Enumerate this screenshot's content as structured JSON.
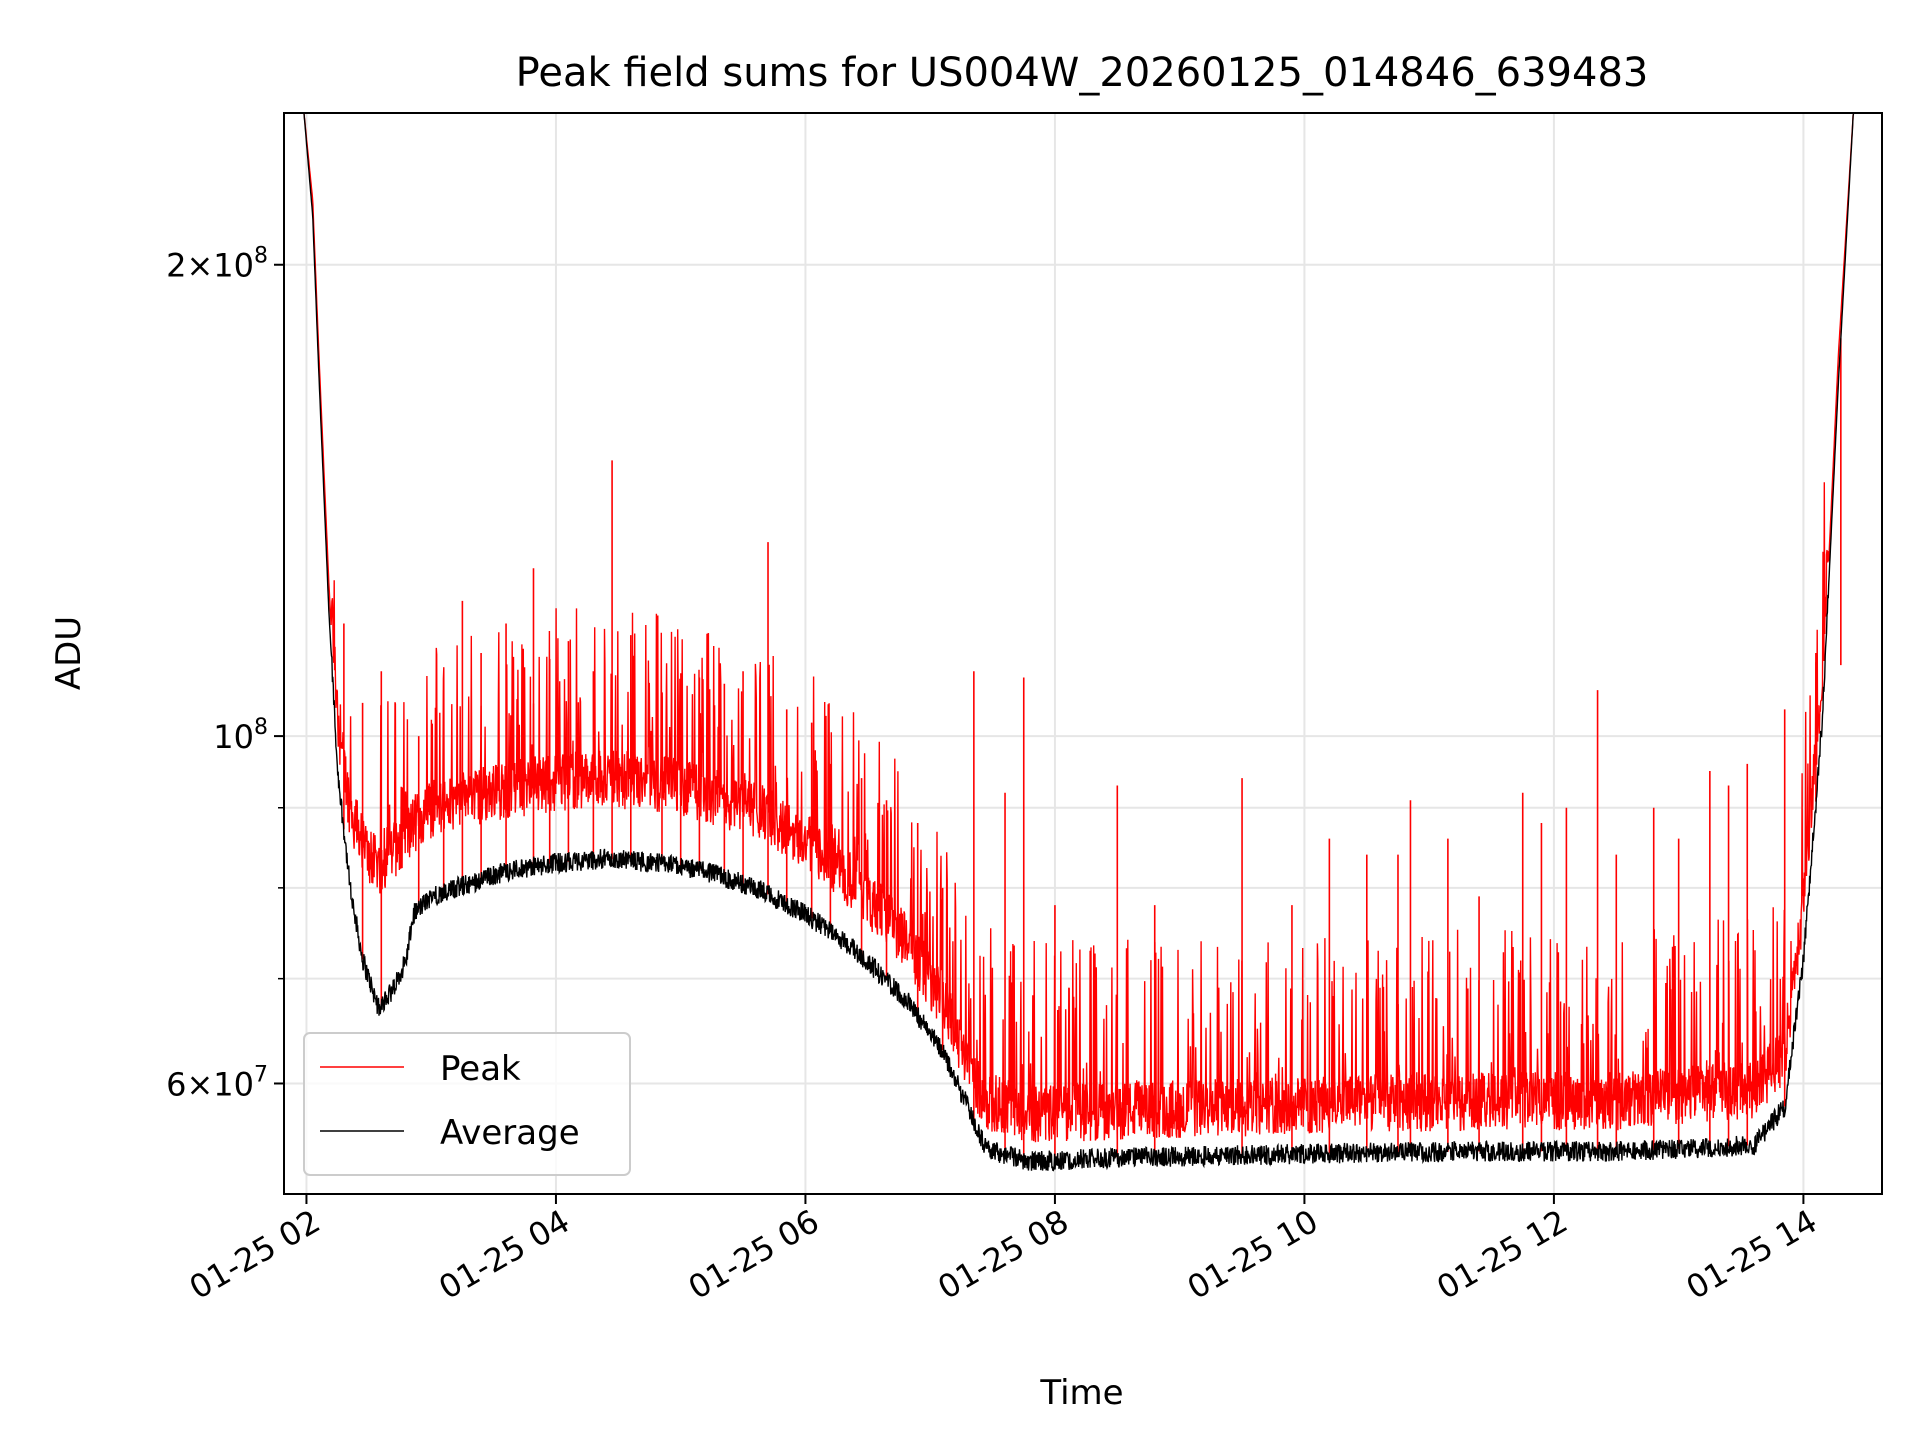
{
  "chart_data": {
    "type": "line",
    "title": "Peak field sums for US004W_20260125_014846_639483",
    "xlabel": "Time",
    "ylabel": "ADU",
    "x_axis": {
      "type": "time",
      "range_hours": [
        1.82,
        14.63
      ],
      "ticks": [
        {
          "hour": 2,
          "label": "01-25 02"
        },
        {
          "hour": 4,
          "label": "01-25 04"
        },
        {
          "hour": 6,
          "label": "01-25 06"
        },
        {
          "hour": 8,
          "label": "01-25 08"
        },
        {
          "hour": 10,
          "label": "01-25 10"
        },
        {
          "hour": 12,
          "label": "01-25 12"
        },
        {
          "hour": 14,
          "label": "01-25 14"
        }
      ]
    },
    "y_axis": {
      "scale": "log",
      "ylim": [
        51000000,
        250000000
      ],
      "major_ticks": [
        {
          "value": 60000000,
          "mantissa": "6",
          "exponent": "7"
        },
        {
          "value": 100000000,
          "mantissa": "",
          "exponent": "8"
        },
        {
          "value": 200000000,
          "mantissa": "2",
          "exponent": "8"
        }
      ],
      "minor_ticks": [
        70000000,
        80000000,
        90000000
      ]
    },
    "grid": true,
    "legend": {
      "placement": "lower-left"
    },
    "series": [
      {
        "name": "Peak",
        "color": "#ff0000",
        "baseline": [
          [
            1.82,
            250000000
          ],
          [
            1.98,
            250000000
          ],
          [
            2.05,
            220000000
          ],
          [
            2.1,
            175000000
          ],
          [
            2.18,
            125000000
          ],
          [
            2.25,
            98000000
          ],
          [
            2.35,
            86000000
          ],
          [
            2.5,
            80000000
          ],
          [
            2.6,
            79000000
          ],
          [
            2.7,
            81000000
          ],
          [
            2.85,
            84000000
          ],
          [
            3.0,
            86000000
          ],
          [
            3.3,
            87500000
          ],
          [
            3.6,
            88500000
          ],
          [
            4.0,
            89500000
          ],
          [
            4.4,
            90000000
          ],
          [
            4.8,
            89500000
          ],
          [
            5.2,
            88000000
          ],
          [
            5.6,
            86000000
          ],
          [
            6.0,
            82000000
          ],
          [
            6.4,
            77000000
          ],
          [
            6.8,
            71000000
          ],
          [
            7.1,
            65000000
          ],
          [
            7.3,
            59000000
          ],
          [
            7.45,
            56000000
          ],
          [
            7.8,
            55000000
          ],
          [
            8.5,
            55200000
          ],
          [
            9.5,
            55500000
          ],
          [
            10.5,
            55800000
          ],
          [
            11.5,
            56000000
          ],
          [
            12.5,
            56000000
          ],
          [
            13.0,
            56500000
          ],
          [
            13.6,
            57000000
          ],
          [
            13.85,
            60000000
          ],
          [
            14.0,
            75000000
          ],
          [
            14.15,
            105000000
          ],
          [
            14.28,
            175000000
          ],
          [
            14.4,
            250000000
          ],
          [
            14.63,
            250000000
          ]
        ],
        "spikes": [
          [
            2.3,
            118000000
          ],
          [
            2.45,
            105000000
          ],
          [
            2.6,
            110000000
          ],
          [
            2.9,
            100000000
          ],
          [
            3.1,
            107000000
          ],
          [
            3.25,
            122000000
          ],
          [
            3.4,
            113000000
          ],
          [
            3.6,
            118000000
          ],
          [
            3.82,
            128000000
          ],
          [
            3.95,
            112000000
          ],
          [
            4.1,
            115000000
          ],
          [
            4.3,
            110000000
          ],
          [
            4.45,
            150000000
          ],
          [
            4.6,
            116000000
          ],
          [
            4.85,
            106000000
          ],
          [
            5.0,
            103000000
          ],
          [
            5.15,
            109000000
          ],
          [
            5.35,
            108000000
          ],
          [
            5.5,
            110000000
          ],
          [
            5.7,
            133000000
          ],
          [
            5.85,
            104000000
          ],
          [
            6.05,
            102000000
          ],
          [
            6.2,
            96000000
          ],
          [
            6.45,
            94000000
          ],
          [
            6.65,
            91000000
          ],
          [
            6.9,
            88000000
          ],
          [
            7.1,
            80000000
          ],
          [
            7.35,
            110000000
          ],
          [
            7.6,
            92000000
          ],
          [
            7.75,
            109000000
          ],
          [
            8.0,
            78000000
          ],
          [
            8.5,
            93000000
          ],
          [
            8.8,
            78000000
          ],
          [
            9.5,
            94000000
          ],
          [
            9.9,
            78000000
          ],
          [
            10.2,
            86000000
          ],
          [
            10.5,
            84000000
          ],
          [
            10.75,
            84000000
          ],
          [
            10.85,
            91000000
          ],
          [
            11.15,
            86000000
          ],
          [
            11.4,
            79000000
          ],
          [
            11.75,
            92000000
          ],
          [
            11.9,
            88000000
          ],
          [
            12.1,
            90000000
          ],
          [
            12.35,
            107000000
          ],
          [
            12.5,
            84000000
          ],
          [
            12.8,
            90000000
          ],
          [
            13.0,
            86000000
          ],
          [
            13.25,
            95000000
          ],
          [
            13.4,
            93000000
          ],
          [
            13.55,
            96000000
          ],
          [
            13.85,
            104000000
          ],
          [
            14.1,
            113000000
          ],
          [
            14.3,
            111000000
          ]
        ]
      },
      {
        "name": "Average",
        "color": "#000000",
        "baseline": [
          [
            1.82,
            250000000
          ],
          [
            1.98,
            250000000
          ],
          [
            2.05,
            215000000
          ],
          [
            2.1,
            170000000
          ],
          [
            2.18,
            120000000
          ],
          [
            2.25,
            95000000
          ],
          [
            2.35,
            80000000
          ],
          [
            2.45,
            72000000
          ],
          [
            2.58,
            67000000
          ],
          [
            2.7,
            69000000
          ],
          [
            2.8,
            72000000
          ],
          [
            2.86,
            77000000
          ],
          [
            3.0,
            79000000
          ],
          [
            3.3,
            80500000
          ],
          [
            3.6,
            82000000
          ],
          [
            4.0,
            83000000
          ],
          [
            4.4,
            83500000
          ],
          [
            4.8,
            83000000
          ],
          [
            5.2,
            82000000
          ],
          [
            5.6,
            80000000
          ],
          [
            6.0,
            77000000
          ],
          [
            6.4,
            73000000
          ],
          [
            6.8,
            68000000
          ],
          [
            7.1,
            63000000
          ],
          [
            7.3,
            58000000
          ],
          [
            7.45,
            54500000
          ],
          [
            7.8,
            53500000
          ],
          [
            8.5,
            53800000
          ],
          [
            9.5,
            54000000
          ],
          [
            10.5,
            54200000
          ],
          [
            11.5,
            54300000
          ],
          [
            12.5,
            54300000
          ],
          [
            13.0,
            54500000
          ],
          [
            13.6,
            54800000
          ],
          [
            13.85,
            58000000
          ],
          [
            14.0,
            72000000
          ],
          [
            14.15,
            102000000
          ],
          [
            14.28,
            168000000
          ],
          [
            14.4,
            250000000
          ],
          [
            14.63,
            250000000
          ]
        ]
      }
    ]
  }
}
